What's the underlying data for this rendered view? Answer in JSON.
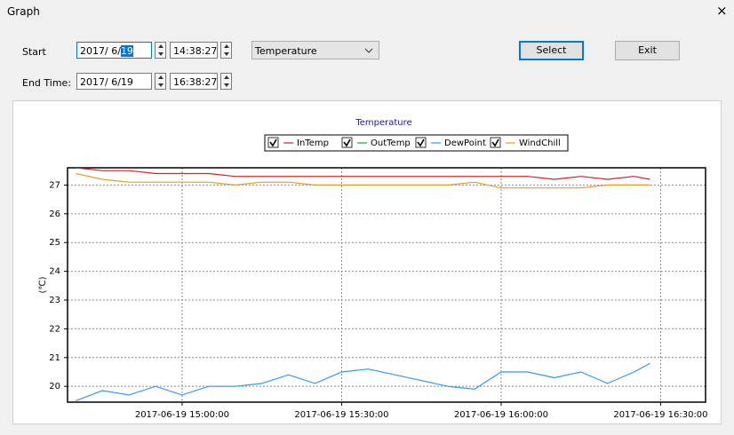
{
  "window": {
    "title": "Graph",
    "close": "×"
  },
  "controls": {
    "start_label": "Start",
    "start_date": "2017/ 6/",
    "start_day": "19",
    "start_time": "14:38:27",
    "end_label": "End Time:",
    "end_date": "2017/ 6/19",
    "end_time": "16:38:27",
    "dropdown": "Temperature",
    "select_button": "Select",
    "exit_button": "Exit"
  },
  "chart_data": {
    "type": "line",
    "title": "Temperature",
    "y_label": "(℃)",
    "x": [
      "2017-06-19 14:40:00",
      "2017-06-19 14:45:00",
      "2017-06-19 14:50:00",
      "2017-06-19 14:55:00",
      "2017-06-19 15:00:00",
      "2017-06-19 15:05:00",
      "2017-06-19 15:10:00",
      "2017-06-19 15:15:00",
      "2017-06-19 15:20:00",
      "2017-06-19 15:25:00",
      "2017-06-19 15:30:00",
      "2017-06-19 15:35:00",
      "2017-06-19 15:40:00",
      "2017-06-19 15:45:00",
      "2017-06-19 15:50:00",
      "2017-06-19 15:55:00",
      "2017-06-19 16:00:00",
      "2017-06-19 16:05:00",
      "2017-06-19 16:10:00",
      "2017-06-19 16:15:00",
      "2017-06-19 16:20:00",
      "2017-06-19 16:25:00",
      "2017-06-19 16:28:00"
    ],
    "xlim": [
      "2017-06-19 14:38:27",
      "2017-06-19 16:38:27"
    ],
    "xticks": [
      "2017-06-19 15:00:00",
      "2017-06-19 15:30:00",
      "2017-06-19 16:00:00",
      "2017-06-19 16:30:00"
    ],
    "ylim": [
      19.45,
      27.6
    ],
    "yticks": [
      20,
      21,
      22,
      23,
      24,
      25,
      26,
      27
    ],
    "grid": true,
    "series": [
      {
        "name": "InTemp",
        "color": "#d42020",
        "values": [
          27.6,
          27.5,
          27.5,
          27.4,
          27.4,
          27.4,
          27.3,
          27.3,
          27.3,
          27.3,
          27.3,
          27.3,
          27.3,
          27.3,
          27.3,
          27.3,
          27.3,
          27.3,
          27.2,
          27.3,
          27.2,
          27.3,
          27.2
        ]
      },
      {
        "name": "OutTemp",
        "color": "#2e9a2e",
        "values": [
          null,
          null,
          null,
          null,
          null,
          null,
          null,
          null,
          null,
          null,
          null,
          null,
          null,
          null,
          null,
          null,
          null,
          null,
          null,
          null,
          null,
          null,
          null
        ]
      },
      {
        "name": "DewPoint",
        "color": "#3399ee",
        "values": [
          19.5,
          19.85,
          19.7,
          20.0,
          19.7,
          20.0,
          20.0,
          20.1,
          20.4,
          20.1,
          20.5,
          20.6,
          20.4,
          20.2,
          20.0,
          19.9,
          20.5,
          20.5,
          20.3,
          20.5,
          20.1,
          20.5,
          20.8
        ]
      },
      {
        "name": "WindChill",
        "color": "#f09a20",
        "values": [
          27.4,
          27.2,
          27.1,
          27.1,
          27.1,
          27.1,
          27.0,
          27.1,
          27.1,
          27.0,
          27.0,
          27.0,
          27.0,
          27.0,
          27.0,
          27.1,
          26.9,
          26.9,
          26.9,
          26.9,
          27.0,
          27.0,
          27.0
        ]
      }
    ]
  }
}
